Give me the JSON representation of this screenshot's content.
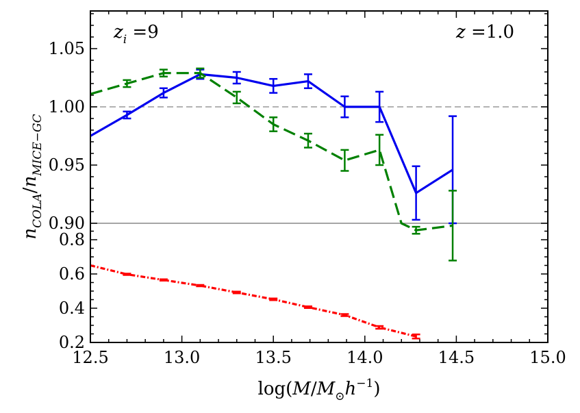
{
  "chart_data": {
    "type": "line",
    "xlabel": "log(M/M⊙h⁻¹)",
    "xlabel_parts": {
      "prefix": "log(",
      "m1": "M",
      "slash": "/",
      "m2": "M",
      "sun": "⊙",
      "h": "h",
      "exp": "−1",
      "suffix": ")"
    },
    "ylabel": "n_COLA/n_MICE-GC",
    "ylabel_parts": {
      "n1": "n",
      "sub1": "COLA",
      "slash": "/",
      "n2": "n",
      "sub2": "MICE−GC"
    },
    "xlim": [
      12.5,
      15.0
    ],
    "x_ticks": [
      "12.5",
      "13.0",
      "13.5",
      "14.0",
      "14.5",
      "15.0"
    ],
    "top_panel": {
      "ylim": [
        0.895,
        1.08
      ],
      "y_ticks": [
        "0.90",
        "0.95",
        "1.00",
        "1.05"
      ],
      "reference_lines": [
        {
          "y": 1.0,
          "color": "#999999",
          "style": "dashed"
        },
        {
          "y": 0.9,
          "color": "#888888",
          "style": "solid"
        }
      ],
      "series": [
        {
          "name": "blue-solid",
          "color": "#0000ee",
          "style": "solid",
          "x": [
            12.5,
            12.7,
            12.9,
            13.1,
            13.3,
            13.5,
            13.69,
            13.89,
            14.08,
            14.28,
            14.48
          ],
          "y": [
            0.975,
            0.993,
            1.012,
            1.028,
            1.025,
            1.018,
            1.022,
            1.0,
            1.0,
            0.926,
            0.946
          ],
          "err": [
            0,
            0.003,
            0.004,
            0.004,
            0.005,
            0.006,
            0.006,
            0.009,
            0.013,
            0.023,
            0.046
          ]
        },
        {
          "name": "green-dashed",
          "color": "#008000",
          "style": "dashed",
          "x": [
            12.5,
            12.7,
            12.9,
            13.1,
            13.3,
            13.5,
            13.69,
            13.89,
            14.08,
            14.2,
            14.28,
            14.48
          ],
          "y": [
            1.011,
            1.02,
            1.029,
            1.029,
            1.008,
            0.985,
            0.971,
            0.954,
            0.963,
            0.9,
            0.894,
            0.898
          ],
          "err": [
            0,
            0.003,
            0.003,
            0.004,
            0.005,
            0.006,
            0.006,
            0.009,
            0.013,
            0,
            0.003,
            0.03
          ]
        }
      ]
    },
    "bottom_panel": {
      "ylim": [
        0.2,
        0.9
      ],
      "y_ticks": [
        "0.2",
        "0.4",
        "0.6",
        "0.8"
      ],
      "series": [
        {
          "name": "red-dotted",
          "color": "#ff0000",
          "style": "dash-dot",
          "x": [
            12.5,
            12.7,
            12.9,
            13.1,
            13.3,
            13.5,
            13.69,
            13.89,
            14.08,
            14.28
          ],
          "y": [
            0.65,
            0.598,
            0.565,
            0.532,
            0.492,
            0.452,
            0.406,
            0.36,
            0.288,
            0.235
          ],
          "err": [
            0,
            0.004,
            0.004,
            0.004,
            0.005,
            0.005,
            0.005,
            0.006,
            0.008,
            0.012
          ]
        }
      ]
    },
    "annotations": {
      "left": {
        "z": "z",
        "sub": "i",
        "eq": " =9"
      },
      "right": {
        "z": "z",
        "eq": " =1.0"
      }
    }
  }
}
